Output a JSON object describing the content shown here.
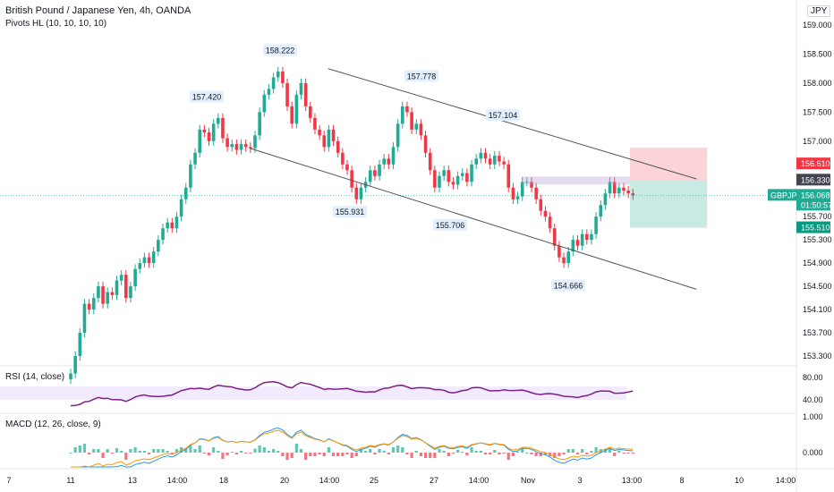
{
  "header": {
    "symbol_title": "British Pound / Japanese Yen, 4h, OANDA",
    "indicator": "Pivots HL (10, 10, 10, 10)",
    "currency": "JPY"
  },
  "price_axis": {
    "ticks": [
      "159.000",
      "158.500",
      "158.000",
      "157.500",
      "157.000",
      "155.700",
      "155.300",
      "154.900",
      "154.500",
      "154.100",
      "153.700",
      "153.300"
    ],
    "tick_values": [
      159.0,
      158.5,
      158.0,
      157.5,
      157.0,
      155.7,
      155.3,
      154.9,
      154.5,
      154.1,
      153.7,
      153.3
    ]
  },
  "price_tags": {
    "stop": {
      "value": "156.610",
      "color": "#f23645"
    },
    "entry": {
      "value": "156.330",
      "color": "#434651"
    },
    "symbol": "GBPJPY",
    "current": {
      "value": "156.068",
      "color": "#22ab94"
    },
    "countdown": "01:50:57",
    "target": {
      "value": "155.510",
      "color": "#089981"
    }
  },
  "pivot_labels": [
    {
      "text": "158.222",
      "price": 158.222
    },
    {
      "text": "157.420",
      "price": 157.42
    },
    {
      "text": "157.778",
      "price": 157.778
    },
    {
      "text": "157.104",
      "price": 157.104
    },
    {
      "text": "155.931",
      "price": 155.931
    },
    {
      "text": "155.706",
      "price": 155.706
    },
    {
      "text": "154.666",
      "price": 154.666
    }
  ],
  "rsi": {
    "label": "RSI (14, close)",
    "ticks": [
      "80.00",
      "40.00"
    ],
    "color": "#7e1f86",
    "band_color": "#e9ddfb"
  },
  "macd": {
    "label": "MACD (12, 26, close, 9)",
    "ticks": [
      "1.000",
      "0.000"
    ],
    "macd_color": "#2196f3",
    "signal_color": "#ff9800"
  },
  "time_axis": {
    "labels": [
      "7",
      "11",
      "13",
      "14:00",
      "18",
      "20",
      "14:00",
      "25",
      "27",
      "14:00",
      "Nov",
      "3",
      "13:00",
      "8",
      "10",
      "14:00"
    ]
  },
  "colors": {
    "up": "#22ab94",
    "down": "#f23645"
  },
  "chart_data": {
    "type": "candlestick",
    "title": "British Pound / Japanese Yen, 4h, OANDA",
    "ylim": [
      153.2,
      159.3
    ],
    "trendlines": [
      {
        "from": {
          "bar": 50,
          "price": 158.25
        },
        "to": {
          "bar": 129,
          "price": 156.35
        }
      },
      {
        "from": {
          "bar": 33,
          "price": 156.88
        },
        "to": {
          "bar": 129,
          "price": 154.45
        }
      }
    ],
    "position": {
      "entry": 156.33,
      "stop": 156.61,
      "target": 155.51
    },
    "candles_close": [
      153.0,
      153.3,
      153.7,
      154.2,
      154.1,
      154.3,
      154.5,
      154.2,
      154.4,
      154.35,
      154.6,
      154.7,
      154.3,
      154.5,
      154.8,
      154.9,
      155.0,
      154.9,
      155.1,
      155.3,
      155.5,
      155.6,
      155.5,
      155.7,
      156.0,
      156.2,
      156.6,
      156.8,
      157.2,
      157.15,
      157.0,
      157.3,
      157.4,
      157.05,
      156.9,
      156.95,
      156.85,
      156.95,
      156.9,
      156.88,
      157.1,
      157.5,
      157.8,
      157.9,
      158.1,
      158.2,
      158.0,
      157.6,
      157.3,
      157.8,
      158.0,
      157.6,
      157.4,
      157.2,
      157.1,
      156.9,
      157.2,
      157.0,
      156.8,
      156.6,
      156.5,
      156.2,
      156.0,
      156.2,
      156.3,
      156.5,
      156.4,
      156.6,
      156.7,
      156.6,
      156.9,
      157.3,
      157.6,
      157.5,
      157.2,
      157.3,
      157.1,
      156.8,
      156.5,
      156.2,
      156.4,
      156.5,
      156.3,
      156.25,
      156.4,
      156.45,
      156.3,
      156.6,
      156.7,
      156.8,
      156.7,
      156.6,
      156.75,
      156.65,
      156.6,
      156.2,
      156.0,
      156.05,
      156.3,
      156.3,
      156.2,
      156.0,
      155.8,
      155.7,
      155.5,
      155.2,
      155.0,
      154.9,
      155.1,
      155.3,
      155.2,
      155.4,
      155.3,
      155.4,
      155.7,
      155.9,
      156.1,
      156.3,
      156.1,
      156.2,
      156.15,
      156.1,
      156.07
    ]
  }
}
